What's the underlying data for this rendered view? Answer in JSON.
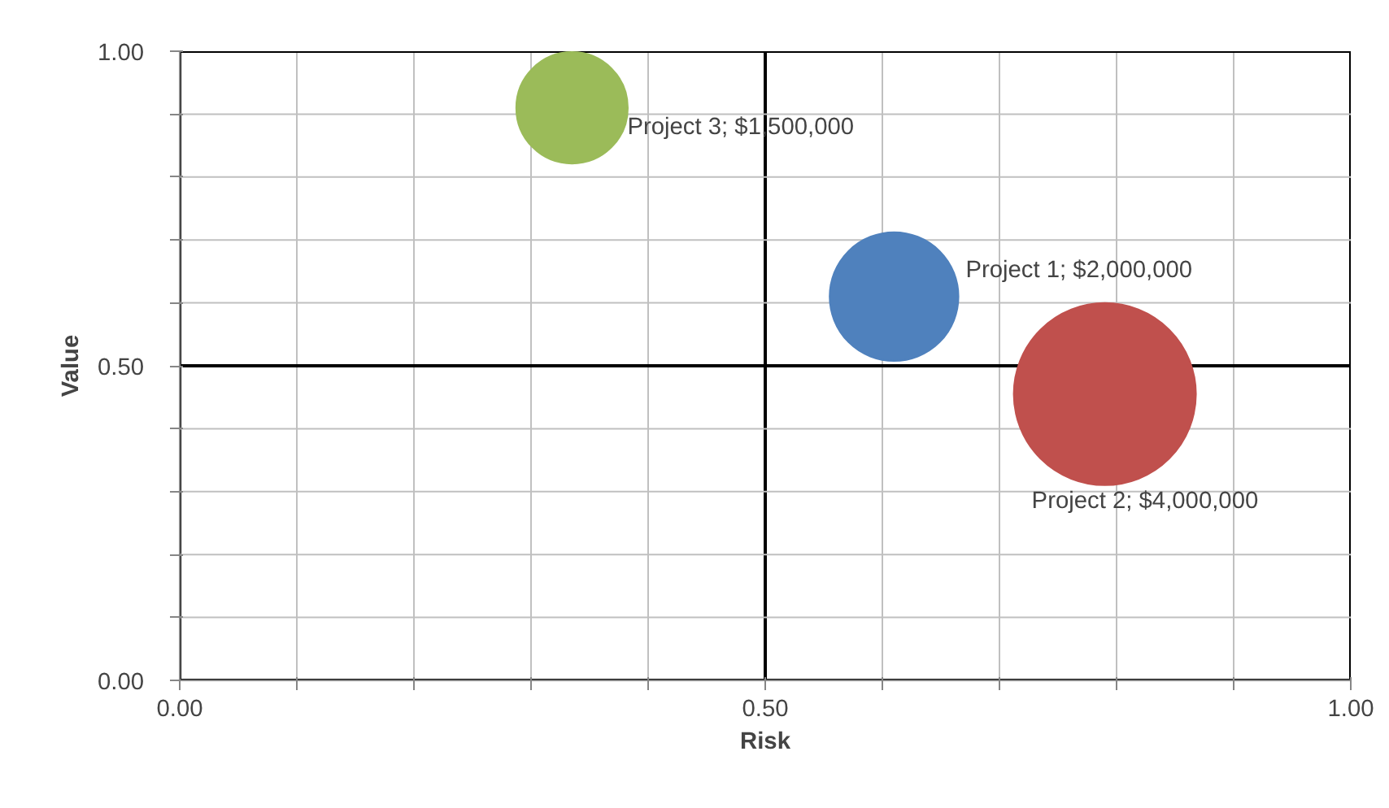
{
  "chart_data": {
    "type": "bubble",
    "xlabel": "Risk",
    "ylabel": "Value",
    "series": [
      {
        "name": "Project 1; $2,000,000",
        "color": "#4f81bd",
        "x": [
          0.61
        ],
        "values": [
          0.61
        ],
        "sizes": [
          0.5
        ]
      },
      {
        "name": "Project 2; $4,000,000",
        "color": "#c0504d",
        "x": [
          0.79
        ],
        "values": [
          0.455
        ],
        "sizes": [
          1
        ]
      },
      {
        "name": "Project 3; $1,500,000",
        "color": "#9bbb59",
        "x": [
          0.335
        ],
        "values": [
          0.91
        ],
        "sizes": [
          0.375
        ]
      }
    ],
    "xlim": [
      0,
      1
    ],
    "ylim": [
      0,
      1
    ],
    "xticks": [
      {
        "value": 0,
        "label": "0.00"
      },
      {
        "value": 0.1,
        "label": null
      },
      {
        "value": 0.2,
        "label": null
      },
      {
        "value": 0.3,
        "label": null
      },
      {
        "value": 0.4,
        "label": null
      },
      {
        "value": 0.5,
        "label": "0.50"
      },
      {
        "value": 0.6,
        "label": null
      },
      {
        "value": 0.7,
        "label": null
      },
      {
        "value": 0.8,
        "label": null
      },
      {
        "value": 0.9,
        "label": null
      },
      {
        "value": 1,
        "label": "1.00"
      }
    ],
    "yticks": [
      {
        "value": 0,
        "label": "0.00"
      },
      {
        "value": 0.1,
        "label": null
      },
      {
        "value": 0.2,
        "label": null
      },
      {
        "value": 0.3,
        "label": null
      },
      {
        "value": 0.4,
        "label": null
      },
      {
        "value": 0.5,
        "label": "0.50"
      },
      {
        "value": 0.6,
        "label": null
      },
      {
        "value": 0.7,
        "label": null
      },
      {
        "value": 0.8,
        "label": null
      },
      {
        "value": 0.9,
        "label": null
      },
      {
        "value": 1,
        "label": "1.00"
      }
    ],
    "grid": true
  }
}
